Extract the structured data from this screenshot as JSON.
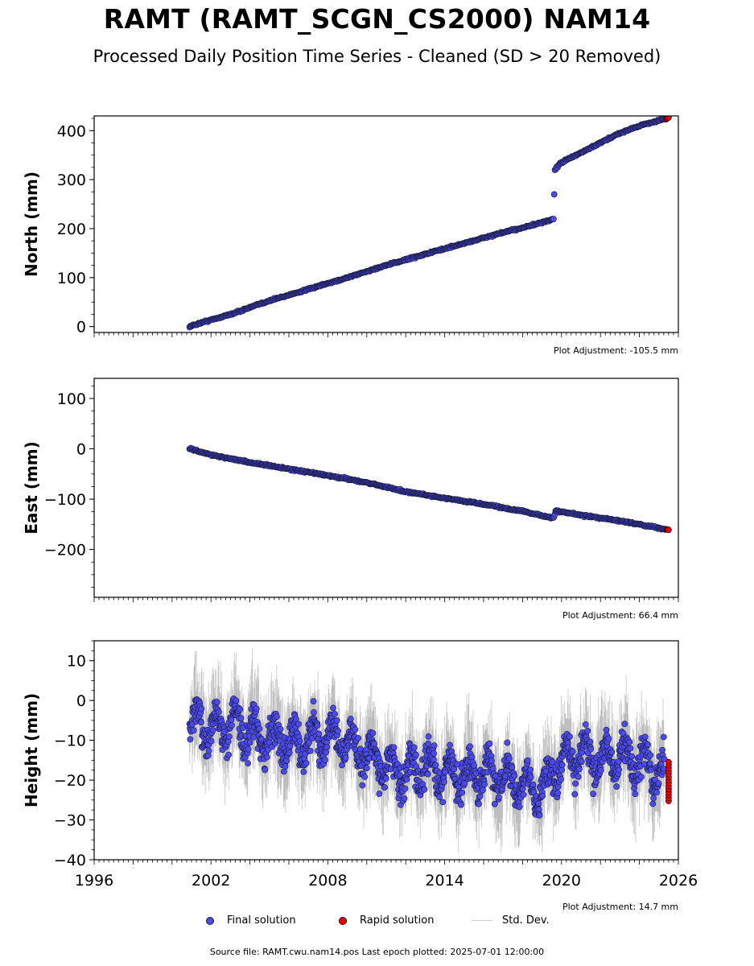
{
  "title": "RAMT (RAMT_SCGN_CS2000) NAM14",
  "subtitle": "Processed Daily Position Time Series - Cleaned (SD > 20 Removed)",
  "legend": {
    "final": "Final solution",
    "rapid": "Rapid solution",
    "sd": "Std. Dev."
  },
  "footer": "Source file: RAMT.cwu.nam14.pos  Last epoch plotted: 2025-07-01 12:00:00",
  "colors": {
    "final": "#4a4af0",
    "rapid": "#e80000",
    "sd": "#b0b0b0",
    "edge": "#1a1a3a"
  },
  "chart_data": [
    {
      "type": "scatter",
      "ylabel": "North (mm)",
      "adjustment": "Plot Adjustment: -105.5 mm",
      "xlim": [
        1996,
        2026
      ],
      "ylim": [
        -12,
        430
      ],
      "yticks": [
        "0",
        "100",
        "200",
        "300",
        "400"
      ],
      "ytick_values": [
        0,
        100,
        200,
        300,
        400
      ],
      "series": [
        {
          "name": "Final solution",
          "x": [
            2000.9,
            2001.5,
            2003,
            2005,
            2007,
            2009,
            2011,
            2013,
            2015,
            2017,
            2019,
            2019.6,
            2019.65,
            2020,
            2021,
            2022,
            2023,
            2024,
            2025.4
          ],
          "y": [
            0,
            8,
            25,
            53,
            76,
            100,
            125,
            148,
            170,
            192,
            212,
            220,
            320,
            335,
            355,
            375,
            395,
            410,
            425
          ]
        },
        {
          "name": "Rapid solution",
          "x": [
            2025.4,
            2025.5
          ],
          "y": [
            424,
            427
          ]
        }
      ],
      "xticks": [
        "",
        "",
        "",
        "",
        "",
        "",
        ""
      ]
    },
    {
      "type": "scatter",
      "ylabel": "East (mm)",
      "adjustment": "Plot Adjustment: 66.4 mm",
      "xlim": [
        1996,
        2026
      ],
      "ylim": [
        -295,
        140
      ],
      "yticks": [
        "0",
        "−100",
        "−200",
        "100"
      ],
      "ytick_values": [
        0,
        -100,
        -200,
        100
      ],
      "series": [
        {
          "name": "Final solution",
          "x": [
            2000.9,
            2002,
            2004,
            2006,
            2008,
            2010,
            2012,
            2014,
            2016,
            2018,
            2019.6,
            2019.7,
            2021,
            2023,
            2025.4
          ],
          "y": [
            0,
            -12,
            -27,
            -40,
            -53,
            -67,
            -85,
            -98,
            -110,
            -124,
            -138,
            -123,
            -132,
            -143,
            -160
          ]
        },
        {
          "name": "Rapid solution",
          "x": [
            2025.4,
            2025.5
          ],
          "y": [
            -160,
            -161
          ]
        }
      ]
    },
    {
      "type": "scatter",
      "ylabel": "Height (mm)",
      "adjustment": "Plot Adjustment: 14.7 mm",
      "xlim": [
        1996,
        2026
      ],
      "ylim": [
        -40,
        15
      ],
      "yticks": [
        "10",
        "0",
        "−10",
        "−20",
        "−30",
        "−40"
      ],
      "ytick_values": [
        10,
        0,
        -10,
        -20,
        -30,
        -40
      ],
      "xticks": [
        "1996",
        "2002",
        "2008",
        "2014",
        "2020",
        "2026"
      ],
      "xtick_values": [
        1996,
        2002,
        2008,
        2014,
        2020,
        2026
      ],
      "series": [
        {
          "name": "Final solution",
          "x": [
            2000.9,
            2002,
            2003,
            2004,
            2005,
            2006,
            2007,
            2008,
            2009,
            2010,
            2011,
            2012,
            2013,
            2014,
            2015,
            2016,
            2017,
            2018,
            2019,
            2020,
            2021,
            2022,
            2023,
            2024,
            2025.3
          ],
          "y": [
            -5,
            -7,
            -6,
            -8,
            -9,
            -11,
            -10,
            -9,
            -11,
            -13,
            -17,
            -18,
            -17,
            -18,
            -19,
            -18,
            -20,
            -21,
            -22,
            -15,
            -13,
            -15,
            -14,
            -16,
            -18
          ]
        },
        {
          "name": "Rapid solution",
          "x": [
            2025.5
          ],
          "y": [
            -20
          ]
        }
      ]
    }
  ]
}
